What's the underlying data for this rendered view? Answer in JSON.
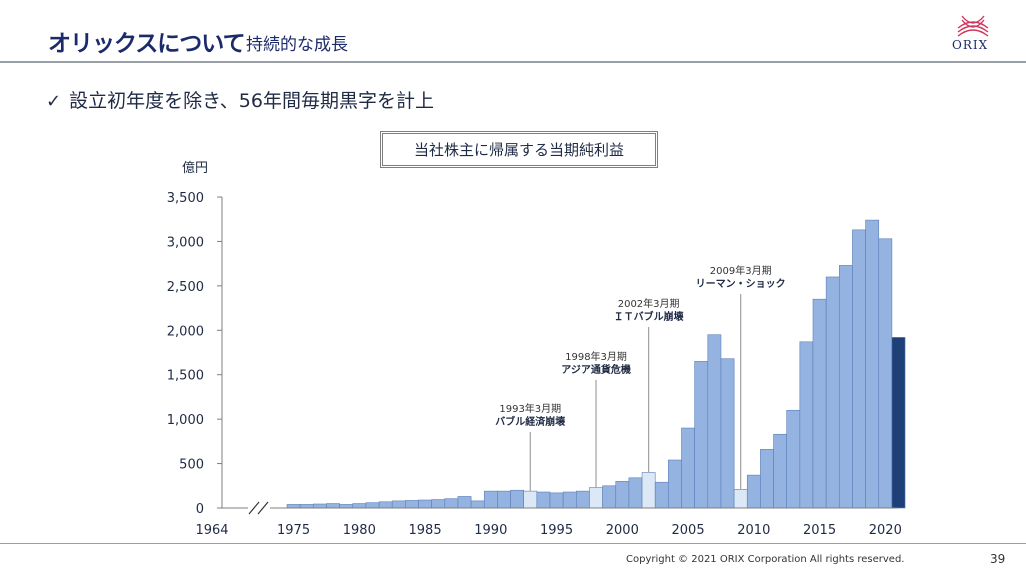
{
  "header": {
    "title": "オリックスについて",
    "subtitle": "持続的な成長",
    "logo_text": "ORIX"
  },
  "bullet": {
    "icon": "check-icon",
    "text": "設立初年度を除き、56年間毎期黒字を計上"
  },
  "footer": {
    "copyright": "Copyright © 2021 ORIX Corporation  All rights reserved.",
    "page_number": "39"
  },
  "colors": {
    "bar": "#95b3e0",
    "bar_highlight": "#dce8f5",
    "bar_latest": "#1f3f78",
    "title": "#1b2a6b"
  },
  "chart_data": {
    "type": "bar",
    "title": "当社株主に帰属する当期純利益",
    "ylabel": "億円",
    "ylim": [
      0,
      3500
    ],
    "yticks": [
      0,
      500,
      1000,
      1500,
      2000,
      2500,
      3000,
      3500
    ],
    "ytick_labels": [
      "0",
      "500",
      "1,000",
      "1,500",
      "2,000",
      "2,500",
      "3,000",
      "3,500"
    ],
    "xtick_labels": [
      "1964",
      "1975",
      "1980",
      "1985",
      "1990",
      "1995",
      "2000",
      "2005",
      "2010",
      "2015",
      "2020"
    ],
    "axis_break": true,
    "years": [
      1975,
      1976,
      1977,
      1978,
      1979,
      1980,
      1981,
      1982,
      1983,
      1984,
      1985,
      1986,
      1987,
      1988,
      1989,
      1990,
      1991,
      1992,
      1993,
      1994,
      1995,
      1996,
      1997,
      1998,
      1999,
      2000,
      2001,
      2002,
      2003,
      2004,
      2005,
      2006,
      2007,
      2008,
      2009,
      2010,
      2011,
      2012,
      2013,
      2014,
      2015,
      2016,
      2017,
      2018,
      2019,
      2020,
      2021
    ],
    "values": [
      40,
      40,
      45,
      50,
      40,
      50,
      60,
      70,
      80,
      85,
      90,
      95,
      105,
      130,
      80,
      190,
      190,
      200,
      190,
      180,
      170,
      180,
      190,
      230,
      250,
      300,
      340,
      400,
      290,
      540,
      900,
      1650,
      1950,
      1680,
      210,
      370,
      660,
      830,
      1100,
      1870,
      2350,
      2600,
      2730,
      3130,
      3240,
      3030,
      1920
    ],
    "highlighted_years": [
      1993,
      1998,
      2002,
      2009
    ],
    "latest_year": 2021,
    "annotations": [
      {
        "year": 1993,
        "date": "1993年3月期",
        "event": "バブル経済崩壊"
      },
      {
        "year": 1998,
        "date": "1998年3月期",
        "event": "アジア通貨危機"
      },
      {
        "year": 2002,
        "date": "2002年3月期",
        "event": "ＩＴバブル崩壊"
      },
      {
        "year": 2009,
        "date": "2009年3月期",
        "event": "リーマン・ショック"
      }
    ]
  }
}
